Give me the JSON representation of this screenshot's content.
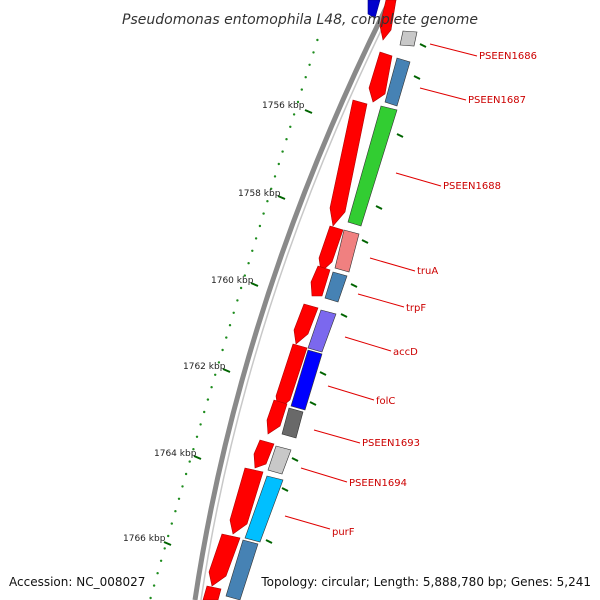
{
  "title": "Pseudomonas entomophila L48, complete genome",
  "footer": {
    "accession": "Accession: NC_008027",
    "topology": "Topology: circular; Length: 5,888,780 bp; Genes: 5,241"
  },
  "kbp_ticks": [
    "1756 kbp",
    "1758 kbp",
    "1760 kbp",
    "1762 kbp",
    "1764 kbp",
    "1766 kbp"
  ],
  "genes": [
    {
      "label": "PSEEN1686",
      "color": "#c8c8c8"
    },
    {
      "label": "PSEEN1687",
      "color": "#4682b4"
    },
    {
      "label": "PSEEN1688",
      "color": "#32cd32"
    },
    {
      "label": "truA",
      "color": "#f08080"
    },
    {
      "label": "trpF",
      "color": "#4682b4"
    },
    {
      "label": "accD",
      "color": "#7b68ee"
    },
    {
      "label": "folC",
      "color": "#0000ff"
    },
    {
      "label": "PSEEN1693",
      "color": "#696969"
    },
    {
      "label": "PSEEN1694",
      "color": "#c8c8c8"
    },
    {
      "label": "purF",
      "color": "#00bfff"
    }
  ],
  "colors": {
    "cds": "#ff0000",
    "label_line": "#e00000",
    "backbone": "#808080",
    "tick": "#006400"
  }
}
